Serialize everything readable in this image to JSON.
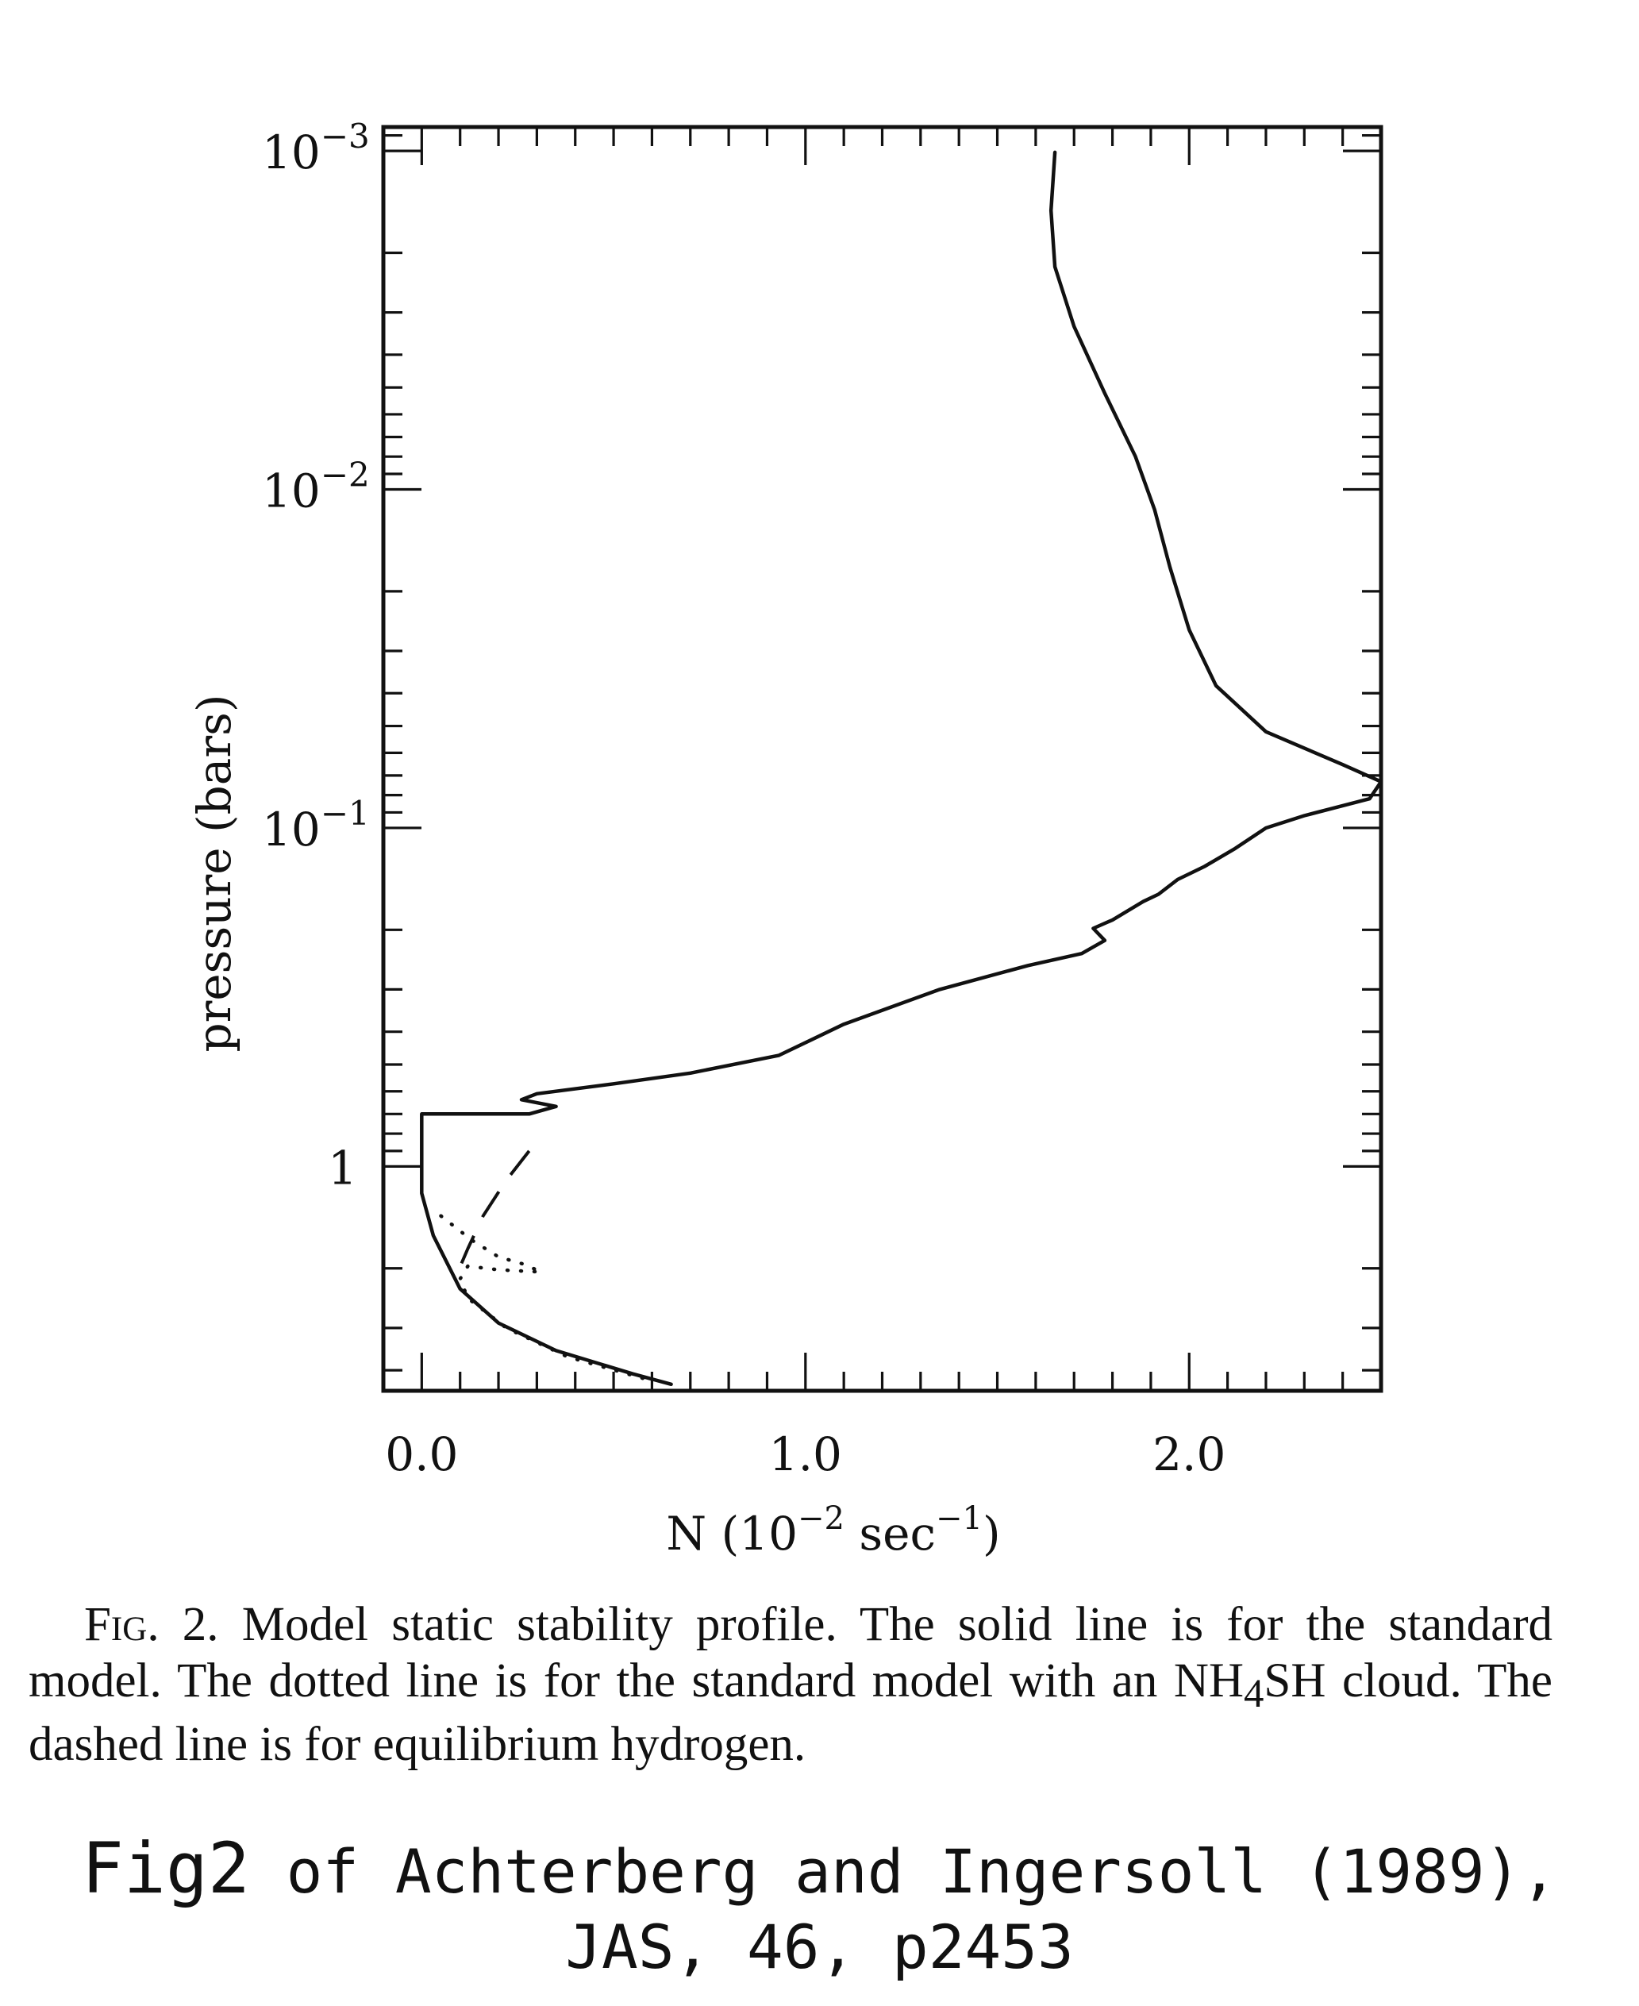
{
  "chart_data": {
    "type": "line",
    "x_axis": {
      "label": "N (10",
      "label_exp1": "−2",
      "label_mid": " sec",
      "label_exp2": "−1",
      "label_end": ")",
      "range": [
        -0.1,
        2.5
      ],
      "ticks": [
        {
          "value": 0.0,
          "label": "0.0"
        },
        {
          "value": 1.0,
          "label": "1.0"
        },
        {
          "value": 2.0,
          "label": "2.0"
        }
      ],
      "minor_step": 0.1
    },
    "y_axis": {
      "label": "pressure (bars)",
      "scale": "log",
      "inverted": true,
      "range_bars": [
        0.00085,
        4.6
      ],
      "ticks": [
        {
          "value": 0.001,
          "base": "10",
          "exp": "−3"
        },
        {
          "value": 0.01,
          "base": "10",
          "exp": "−2"
        },
        {
          "value": 0.1,
          "base": "10",
          "exp": "−1"
        },
        {
          "value": 1,
          "base": "1",
          "exp": ""
        }
      ]
    },
    "series": [
      {
        "style": "solid",
        "points": [
          [
            1.65,
            0.00101
          ],
          [
            1.64,
            0.0015
          ],
          [
            1.65,
            0.0022
          ],
          [
            1.7,
            0.0033
          ],
          [
            1.78,
            0.0052
          ],
          [
            1.86,
            0.008
          ],
          [
            1.91,
            0.0115
          ],
          [
            1.95,
            0.017
          ],
          [
            2.0,
            0.026
          ],
          [
            2.07,
            0.038
          ],
          [
            2.2,
            0.052
          ],
          [
            2.4,
            0.065
          ],
          [
            2.5,
            0.073
          ],
          [
            2.47,
            0.082
          ],
          [
            2.3,
            0.092
          ],
          [
            2.2,
            0.1
          ],
          [
            2.12,
            0.115
          ],
          [
            2.04,
            0.13
          ],
          [
            1.97,
            0.142
          ],
          [
            1.92,
            0.157
          ],
          [
            1.88,
            0.165
          ],
          [
            1.8,
            0.187
          ],
          [
            1.75,
            0.198
          ],
          [
            1.78,
            0.215
          ],
          [
            1.72,
            0.235
          ],
          [
            1.58,
            0.255
          ],
          [
            1.35,
            0.3
          ],
          [
            1.1,
            0.38
          ],
          [
            0.93,
            0.47
          ],
          [
            0.7,
            0.53
          ],
          [
            0.5,
            0.57
          ],
          [
            0.3,
            0.61
          ],
          [
            0.26,
            0.635
          ],
          [
            0.35,
            0.665
          ],
          [
            0.28,
            0.7
          ],
          [
            0.0,
            0.7
          ],
          [
            0.0,
            0.9
          ],
          [
            0.0,
            1.2
          ],
          [
            0.03,
            1.6
          ],
          [
            0.1,
            2.3
          ],
          [
            0.2,
            2.9
          ],
          [
            0.35,
            3.5
          ],
          [
            0.55,
            4.1
          ],
          [
            0.65,
            4.4
          ]
        ]
      },
      {
        "style": "dotted",
        "points": [
          [
            0.05,
            1.4
          ],
          [
            0.13,
            1.65
          ],
          [
            0.2,
            1.85
          ],
          [
            0.27,
            1.95
          ],
          [
            0.31,
            2.05
          ],
          [
            0.2,
            2.02
          ],
          [
            0.12,
            1.97
          ],
          [
            0.1,
            2.15
          ],
          [
            0.12,
            2.45
          ],
          [
            0.22,
            3.0
          ],
          [
            0.38,
            3.65
          ],
          [
            0.6,
            4.3
          ]
        ]
      },
      {
        "style": "dashed",
        "points": [
          [
            0.28,
            0.9
          ],
          [
            0.22,
            1.1
          ],
          [
            0.16,
            1.4
          ],
          [
            0.12,
            1.75
          ],
          [
            0.09,
            2.1
          ]
        ]
      }
    ]
  },
  "caption": {
    "lead": "Fig",
    "number": ". 2.",
    "text": " Model static stability profile. The solid line is for the standard model. The dotted line is for the standard model with an NH",
    "subscript": "4",
    "text_end": "SH cloud. The dashed line is for equilibrium hydrogen."
  },
  "source": {
    "fig": "Fig2",
    "line1": " of Achterberg and Ingersoll (1989),",
    "line2": "JAS, 46, p2453"
  }
}
